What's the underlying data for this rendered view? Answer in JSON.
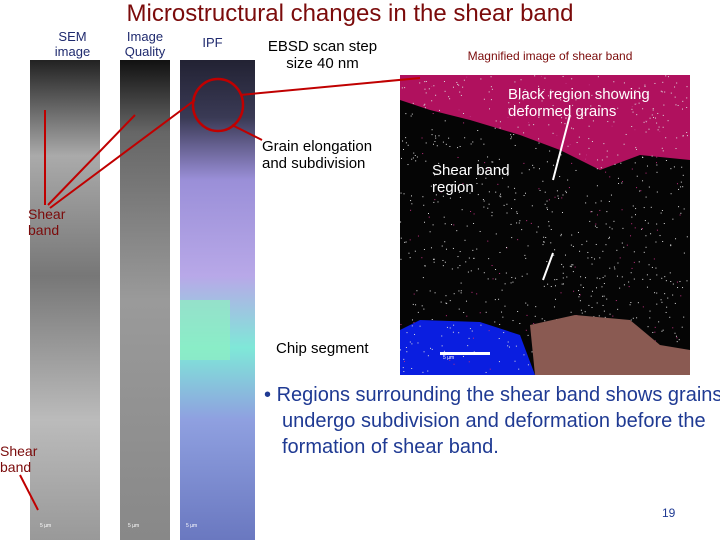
{
  "title": "Microstructural changes in the shear band",
  "panels": [
    {
      "label": "SEM image"
    },
    {
      "label": "Image Quality"
    },
    {
      "label": "IPF"
    }
  ],
  "ebsd_note": "EBSD scan step size 40 nm",
  "magnified_title": "Magnified image of shear band",
  "annotations": {
    "black_region": "Black region showing deformed grains",
    "grain_elongation": "Grain elongation and subdivision",
    "shear_band_region": "Shear band region",
    "shear_band_top": "Shear band",
    "shear_band_bottom": "Shear band",
    "chip_segment": "Chip segment"
  },
  "scale_bars": [
    "5 µm",
    "5 µm",
    "5 µm",
    "5 µm"
  ],
  "bullets": [
    "Regions surrounding the shear band shows grains  undergo subdivision and deformation  before the formation of shear band."
  ],
  "page_number": "19"
}
